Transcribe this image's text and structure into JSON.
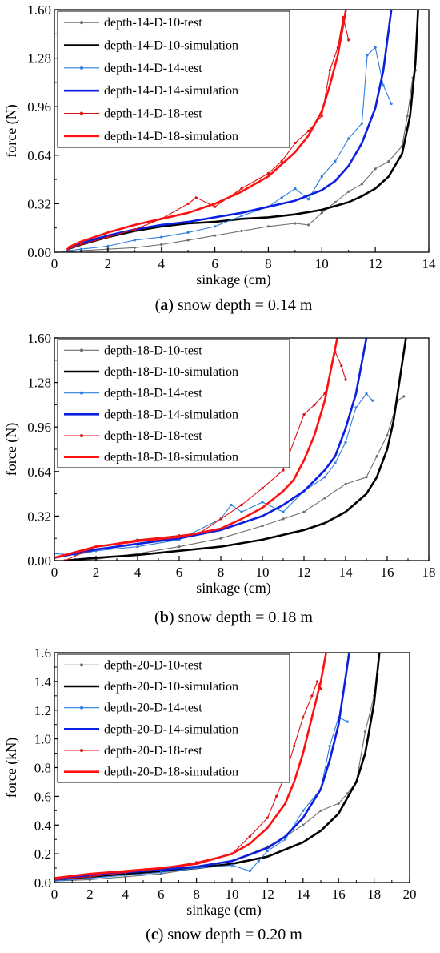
{
  "chart_data": [
    {
      "type": "line",
      "caption": {
        "open": "(",
        "letter": "a",
        "close": ") snow depth = 0.14 m"
      },
      "xlabel": "sinkage (cm)",
      "ylabel": "force (N)",
      "xlim": [
        0,
        14
      ],
      "ylim": [
        0,
        1.6
      ],
      "xticks": [
        "0",
        "2",
        "4",
        "6",
        "8",
        "10",
        "12",
        "14"
      ],
      "yticks": [
        "0.00",
        "0.32",
        "0.64",
        "0.96",
        "1.28",
        "1.60"
      ],
      "legend": "top-left",
      "series": [
        {
          "name": "depth-14-D-10-test",
          "color": "#6e6e6e",
          "style": "test",
          "x": [
            0.3,
            1,
            2,
            3,
            4,
            5,
            6,
            7,
            8,
            9,
            9.5,
            10,
            10.5,
            11,
            11.5,
            12,
            12.5,
            13,
            13.2,
            13.4,
            13.5
          ],
          "y": [
            0.0,
            0.01,
            0.02,
            0.03,
            0.05,
            0.08,
            0.11,
            0.14,
            0.17,
            0.19,
            0.18,
            0.26,
            0.33,
            0.4,
            0.45,
            0.55,
            0.6,
            0.7,
            0.9,
            1.15,
            1.2
          ]
        },
        {
          "name": "depth-14-D-10-simulation",
          "color": "#000000",
          "style": "sim",
          "x": [
            0.5,
            1,
            2,
            3,
            4,
            5,
            6,
            7,
            8,
            9,
            10,
            11,
            11.5,
            12,
            12.5,
            13,
            13.3,
            13.5,
            13.6
          ],
          "y": [
            0.02,
            0.05,
            0.1,
            0.14,
            0.17,
            0.19,
            0.2,
            0.22,
            0.23,
            0.25,
            0.28,
            0.33,
            0.37,
            0.42,
            0.5,
            0.65,
            0.9,
            1.25,
            1.6
          ]
        },
        {
          "name": "depth-14-D-14-test",
          "color": "#2f7fe0",
          "style": "test",
          "x": [
            0.5,
            1,
            2,
            3,
            4,
            5,
            6,
            7,
            8,
            8.5,
            9,
            9.5,
            10,
            10.5,
            11,
            11.5,
            11.7,
            12,
            12.3,
            12.6
          ],
          "y": [
            0.01,
            0.02,
            0.04,
            0.08,
            0.1,
            0.13,
            0.17,
            0.24,
            0.3,
            0.36,
            0.42,
            0.35,
            0.5,
            0.6,
            0.75,
            0.85,
            1.3,
            1.35,
            1.1,
            0.98
          ]
        },
        {
          "name": "depth-14-D-14-simulation",
          "color": "#0a1fe0",
          "style": "sim",
          "x": [
            0.5,
            1,
            2,
            3,
            4,
            5,
            6,
            7,
            8,
            9,
            10,
            10.5,
            11,
            11.5,
            12,
            12.3,
            12.6
          ],
          "y": [
            0.02,
            0.06,
            0.11,
            0.15,
            0.18,
            0.2,
            0.23,
            0.26,
            0.3,
            0.34,
            0.41,
            0.47,
            0.57,
            0.72,
            0.95,
            1.2,
            1.6
          ]
        },
        {
          "name": "depth-14-D-18-test",
          "color": "#e01010",
          "style": "test",
          "x": [
            0.5,
            1,
            2,
            3,
            4,
            5,
            5.3,
            6,
            7,
            8,
            8.5,
            9,
            9.5,
            10,
            10.3,
            10.6,
            10.8,
            11.0
          ],
          "y": [
            0.02,
            0.05,
            0.1,
            0.15,
            0.22,
            0.32,
            0.36,
            0.3,
            0.42,
            0.52,
            0.6,
            0.72,
            0.8,
            0.9,
            1.2,
            1.35,
            1.55,
            1.4
          ]
        },
        {
          "name": "depth-14-D-18-simulation",
          "color": "#ff1010",
          "style": "sim",
          "x": [
            0.5,
            1,
            2,
            3,
            4,
            5,
            6,
            7,
            8,
            9,
            9.5,
            10,
            10.3,
            10.6,
            10.9
          ],
          "y": [
            0.03,
            0.07,
            0.13,
            0.18,
            0.22,
            0.26,
            0.32,
            0.4,
            0.5,
            0.66,
            0.77,
            0.93,
            1.1,
            1.3,
            1.6
          ]
        }
      ]
    },
    {
      "type": "line",
      "caption": {
        "open": "(",
        "letter": "b",
        "close": ") snow depth = 0.18 m"
      },
      "xlabel": "sinkage (cm)",
      "ylabel": "force (N)",
      "xlim": [
        0,
        18
      ],
      "ylim": [
        0,
        1.6
      ],
      "xticks": [
        "0",
        "2",
        "4",
        "6",
        "8",
        "10",
        "12",
        "14",
        "16",
        "18"
      ],
      "yticks": [
        "0.00",
        "0.32",
        "0.64",
        "0.96",
        "1.28",
        "1.60"
      ],
      "legend": "top-left",
      "series": [
        {
          "name": "depth-18-D-10-test",
          "color": "#6e6e6e",
          "style": "test",
          "x": [
            0.5,
            2,
            4,
            6,
            8,
            10,
            11,
            12,
            13,
            14,
            15,
            15.5,
            16,
            16.5,
            16.8
          ],
          "y": [
            0.0,
            0.01,
            0.05,
            0.1,
            0.16,
            0.25,
            0.3,
            0.35,
            0.45,
            0.55,
            0.6,
            0.75,
            0.9,
            1.15,
            1.18
          ]
        },
        {
          "name": "depth-18-D-10-simulation",
          "color": "#000000",
          "style": "sim",
          "x": [
            0.5,
            2,
            4,
            6,
            8,
            10,
            12,
            13,
            14,
            15,
            15.5,
            16,
            16.3,
            16.6,
            16.9
          ],
          "y": [
            0.0,
            0.02,
            0.04,
            0.07,
            0.1,
            0.15,
            0.22,
            0.27,
            0.35,
            0.48,
            0.6,
            0.8,
            1.0,
            1.3,
            1.6
          ]
        },
        {
          "name": "depth-18-D-14-test",
          "color": "#2f7fe0",
          "style": "test",
          "x": [
            0,
            1,
            2,
            4,
            6,
            8,
            8.5,
            9,
            10,
            11,
            12,
            13,
            13.5,
            14,
            14.5,
            15,
            15.3
          ],
          "y": [
            0.05,
            0.04,
            0.07,
            0.1,
            0.15,
            0.3,
            0.4,
            0.35,
            0.42,
            0.35,
            0.5,
            0.6,
            0.7,
            0.85,
            1.1,
            1.2,
            1.15
          ]
        },
        {
          "name": "depth-18-D-14-simulation",
          "color": "#0a1fe0",
          "style": "sim",
          "x": [
            0,
            2,
            4,
            6,
            8,
            10,
            11,
            12,
            13,
            13.5,
            14,
            14.5,
            15
          ],
          "y": [
            0.02,
            0.08,
            0.12,
            0.16,
            0.22,
            0.32,
            0.4,
            0.5,
            0.65,
            0.75,
            0.95,
            1.2,
            1.6
          ]
        },
        {
          "name": "depth-18-D-18-test",
          "color": "#e01010",
          "style": "test",
          "x": [
            0.5,
            2,
            4,
            6,
            7,
            8,
            9,
            10,
            11,
            12,
            12.5,
            13,
            13.2,
            13.5,
            13.8,
            14.0
          ],
          "y": [
            0.0,
            0.1,
            0.15,
            0.18,
            0.2,
            0.3,
            0.4,
            0.52,
            0.65,
            1.05,
            1.12,
            1.2,
            1.3,
            1.5,
            1.4,
            1.3
          ]
        },
        {
          "name": "depth-18-D-18-simulation",
          "color": "#ff1010",
          "style": "sim",
          "x": [
            0,
            2,
            4,
            6,
            8,
            9,
            10,
            11,
            11.5,
            12,
            12.5,
            13,
            13.3,
            13.6
          ],
          "y": [
            0.02,
            0.1,
            0.14,
            0.17,
            0.23,
            0.3,
            0.38,
            0.5,
            0.58,
            0.72,
            0.9,
            1.15,
            1.38,
            1.6
          ]
        }
      ]
    },
    {
      "type": "line",
      "caption": {
        "open": "(",
        "letter": "c",
        "close": ") snow depth = 0.20 m"
      },
      "xlabel": "sinkage (cm)",
      "ylabel": "force (kN)",
      "xlim": [
        0,
        20
      ],
      "ylim": [
        0,
        1.6
      ],
      "xticks": [
        "0",
        "2",
        "4",
        "6",
        "8",
        "10",
        "12",
        "14",
        "16",
        "18",
        "20"
      ],
      "yticks": [
        "0.0",
        "0.2",
        "0.4",
        "0.6",
        "0.8",
        "1.0",
        "1.2",
        "1.4",
        "1.6"
      ],
      "legend": "top-left",
      "series": [
        {
          "name": "depth-20-D-10-test",
          "color": "#6e6e6e",
          "style": "test",
          "x": [
            0,
            2,
            4,
            6,
            8,
            10,
            12,
            13,
            14,
            15,
            16,
            16.5,
            17,
            17.5,
            18,
            18.2
          ],
          "y": [
            0.01,
            0.02,
            0.04,
            0.06,
            0.1,
            0.15,
            0.25,
            0.32,
            0.4,
            0.5,
            0.55,
            0.62,
            0.7,
            1.05,
            1.3,
            1.45
          ]
        },
        {
          "name": "depth-20-D-10-simulation",
          "color": "#000000",
          "style": "sim",
          "x": [
            0,
            2,
            4,
            6,
            8,
            10,
            12,
            14,
            15,
            16,
            17,
            17.5,
            18,
            18.3
          ],
          "y": [
            0.02,
            0.04,
            0.06,
            0.08,
            0.1,
            0.13,
            0.18,
            0.28,
            0.36,
            0.48,
            0.7,
            0.9,
            1.25,
            1.6
          ]
        },
        {
          "name": "depth-20-D-14-test",
          "color": "#2f7fe0",
          "style": "test",
          "x": [
            0,
            2,
            4,
            6,
            8,
            10,
            11,
            11.5,
            12,
            13,
            14,
            15,
            15.5,
            16,
            16.5
          ],
          "y": [
            0.01,
            0.03,
            0.05,
            0.07,
            0.1,
            0.12,
            0.08,
            0.15,
            0.22,
            0.3,
            0.5,
            0.65,
            0.95,
            1.15,
            1.12
          ]
        },
        {
          "name": "depth-20-D-14-simulation",
          "color": "#0a1fe0",
          "style": "sim",
          "x": [
            0,
            2,
            4,
            6,
            8,
            10,
            12,
            13,
            14,
            15,
            15.5,
            16,
            16.3,
            16.6
          ],
          "y": [
            0.02,
            0.05,
            0.07,
            0.09,
            0.11,
            0.15,
            0.24,
            0.32,
            0.45,
            0.65,
            0.85,
            1.1,
            1.35,
            1.6
          ]
        },
        {
          "name": "depth-20-D-18-test",
          "color": "#e01010",
          "style": "test",
          "x": [
            0,
            2,
            4,
            6,
            8,
            10,
            11,
            12,
            12.5,
            13,
            13.5,
            14,
            14.5,
            14.8,
            15.0
          ],
          "y": [
            0.02,
            0.04,
            0.07,
            0.1,
            0.14,
            0.2,
            0.32,
            0.45,
            0.6,
            0.75,
            0.95,
            1.15,
            1.3,
            1.4,
            1.35
          ]
        },
        {
          "name": "depth-20-D-18-simulation",
          "color": "#ff1010",
          "style": "sim",
          "x": [
            0,
            2,
            4,
            6,
            8,
            10,
            11,
            12,
            13,
            13.5,
            14,
            14.5,
            15,
            15.3
          ],
          "y": [
            0.03,
            0.06,
            0.08,
            0.1,
            0.13,
            0.2,
            0.27,
            0.38,
            0.55,
            0.7,
            0.9,
            1.15,
            1.4,
            1.6
          ]
        }
      ]
    }
  ]
}
